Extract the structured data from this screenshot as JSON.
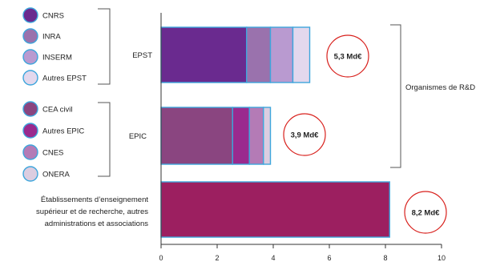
{
  "chart_data": {
    "type": "bar",
    "orientation": "horizontal",
    "stacked": true,
    "xlim": [
      0,
      10
    ],
    "x_ticks": [
      "0",
      "2",
      "4",
      "6",
      "8",
      "10"
    ],
    "grid": false,
    "categories": [
      "EPST",
      "EPIC",
      "Établissements d’enseignement supérieur et de recherche, autres administrations et associations"
    ],
    "category_label_lines": [
      [
        "EPST"
      ],
      [
        "EPIC"
      ],
      [
        "Établissements d’enseignement",
        "supérieur et de recherche, autres",
        "administrations et associations"
      ]
    ],
    "stacks": [
      {
        "segments": [
          {
            "name": "CNRS",
            "value": 3.05,
            "color": "#6a2a8f"
          },
          {
            "name": "INRA",
            "value": 0.85,
            "color": "#9a72ad"
          },
          {
            "name": "INSERM",
            "value": 0.8,
            "color": "#b99ad0"
          },
          {
            "name": "Autres EPST",
            "value": 0.6,
            "color": "#e3d8ed"
          }
        ]
      },
      {
        "segments": [
          {
            "name": "CEA civil",
            "value": 2.55,
            "color": "#8a4580"
          },
          {
            "name": "Autres EPIC",
            "value": 0.6,
            "color": "#9a2a8e"
          },
          {
            "name": "CNES",
            "value": 0.5,
            "color": "#b47bb6"
          },
          {
            "name": "ONERA",
            "value": 0.25,
            "color": "#dccde0"
          }
        ]
      },
      {
        "segments": [
          {
            "name": "",
            "value": 8.15,
            "color": "#9c1f60"
          }
        ]
      }
    ],
    "totals": [
      "5,3 Md€",
      "3,9 Md€",
      "8,2 Md€"
    ],
    "legend": {
      "position": "left",
      "groups": [
        {
          "items": [
            {
              "label": "CNRS",
              "color": "#6a2a8f"
            },
            {
              "label": "INRA",
              "color": "#9a72ad"
            },
            {
              "label": "INSERM",
              "color": "#b99ad0"
            },
            {
              "label": "Autres EPST",
              "color": "#e3d8ed"
            }
          ]
        },
        {
          "items": [
            {
              "label": "CEA civil",
              "color": "#8a4580"
            },
            {
              "label": "Autres EPIC",
              "color": "#9a2a8e"
            },
            {
              "label": "CNES",
              "color": "#b47bb6"
            },
            {
              "label": "ONERA",
              "color": "#dccde0"
            }
          ]
        }
      ]
    },
    "group_annotation": "Organismes de R&D",
    "colors": {
      "bar_border": "#3ea6dc",
      "circle_border": "#d8201c",
      "axis": "#333333",
      "text": "#222222",
      "bracket": "#555555"
    }
  }
}
